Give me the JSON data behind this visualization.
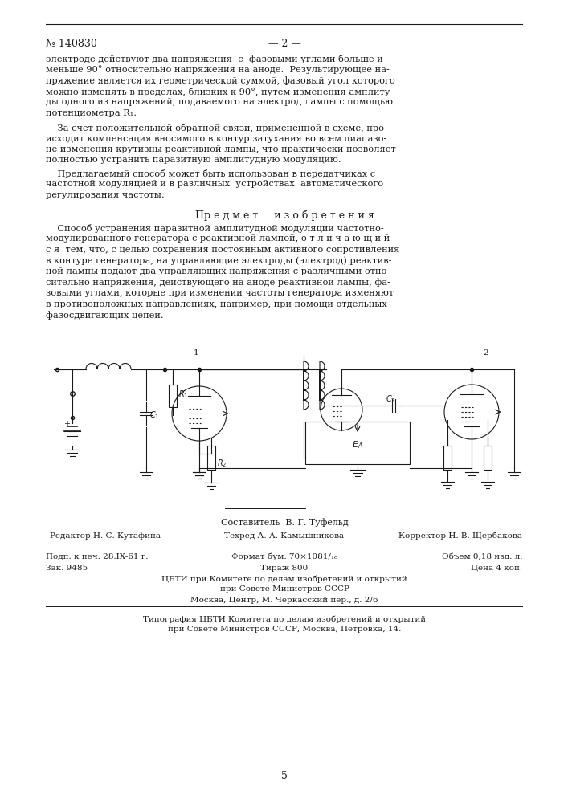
{
  "bg_color": "#ffffff",
  "text_color": "#1a1a1a",
  "page_number_left": "№ 140830",
  "page_number_center": "— 2 —",
  "body_text_1": "электроде действуют два напряжения  с  фазовыми углами больше и\nменьше 90° относительно напряжения на аноде.  Результирующее на-\nпряжение является их геометрической суммой, фазовый угол которого\nможно изменять в пределах, близких к 90°, путем изменения амплиту-\nды одного из напряжений, подаваемого на электрод лампы с помощью\nпотенциометра R₁.",
  "body_text_2_first": "    За счет положительной обратной связи, примененной в схеме, про-",
  "body_text_2_rest": "исходит компенсация вносимого в контур затухания во всем диапазо-\nне изменения крутизны реактивной лампы, что практически позволяет\nполностью устранить паразитную амплитудную модуляцию.",
  "body_text_3_first": "    Предлагаемый способ может быть использован в передатчиках с",
  "body_text_3_rest": "частотной модуляцией и в различных  устройствах  автоматического\nрегулирования частоты.",
  "predmet_header": "Пр е д м е т     и з о б р е т е н и я",
  "predmet_first": "    Способ устранения паразитной амплитудной модуляции частотно-",
  "predmet_rest": "модулированного генератора с реактивной лампой, о т л и ч а ю щ и й-\nс я  тем, что, с целью сохранения постоянным активного сопротивления\nв контуре генератора, на управляющие электроды (электрод) реактив-\nной лампы подают два управляющих напряжения с различными отно-\nсительно напряжения, действующего на аноде реактивной лампы, фа-\nзовыми углами, которые при изменении частоты генератора изменяют\nв противоположных направлениях, например, при помощи отдельных\nфазосдвигающих цепей.",
  "sostavitel": "Составитель  В. Г. Туфельд",
  "editor_left": "Редактор Н. С. Кутафина",
  "editor_center": "Техред А. А. Камышникова",
  "editor_right": "Корректор Н. В. Щербакова",
  "info_line1_left": "Подп. к печ. 28.IX-61 г.",
  "info_line1_center": "Формат бум. 70×1081/₁₈",
  "info_line1_right": "Объем 0,18 изд. л.",
  "info_line2_left": "Зак. 9485",
  "info_line2_center": "Тираж 800",
  "info_line2_right": "Цена 4 коп.",
  "cbti_line1": "ЦБТИ при Комитете по делам изобретений и открытий",
  "cbti_line2": "при Совете Министров СССР",
  "cbti_line3": "Москва, Центр, М. Черкасский пер., д. 2/6",
  "tipografia_line1": "Типография ЦБТИ Комитета по делам изобретений и открытий",
  "tipografia_line2": "при Совете Министров СССР, Москва, Петровка, 14.",
  "page_num_bottom": "5"
}
